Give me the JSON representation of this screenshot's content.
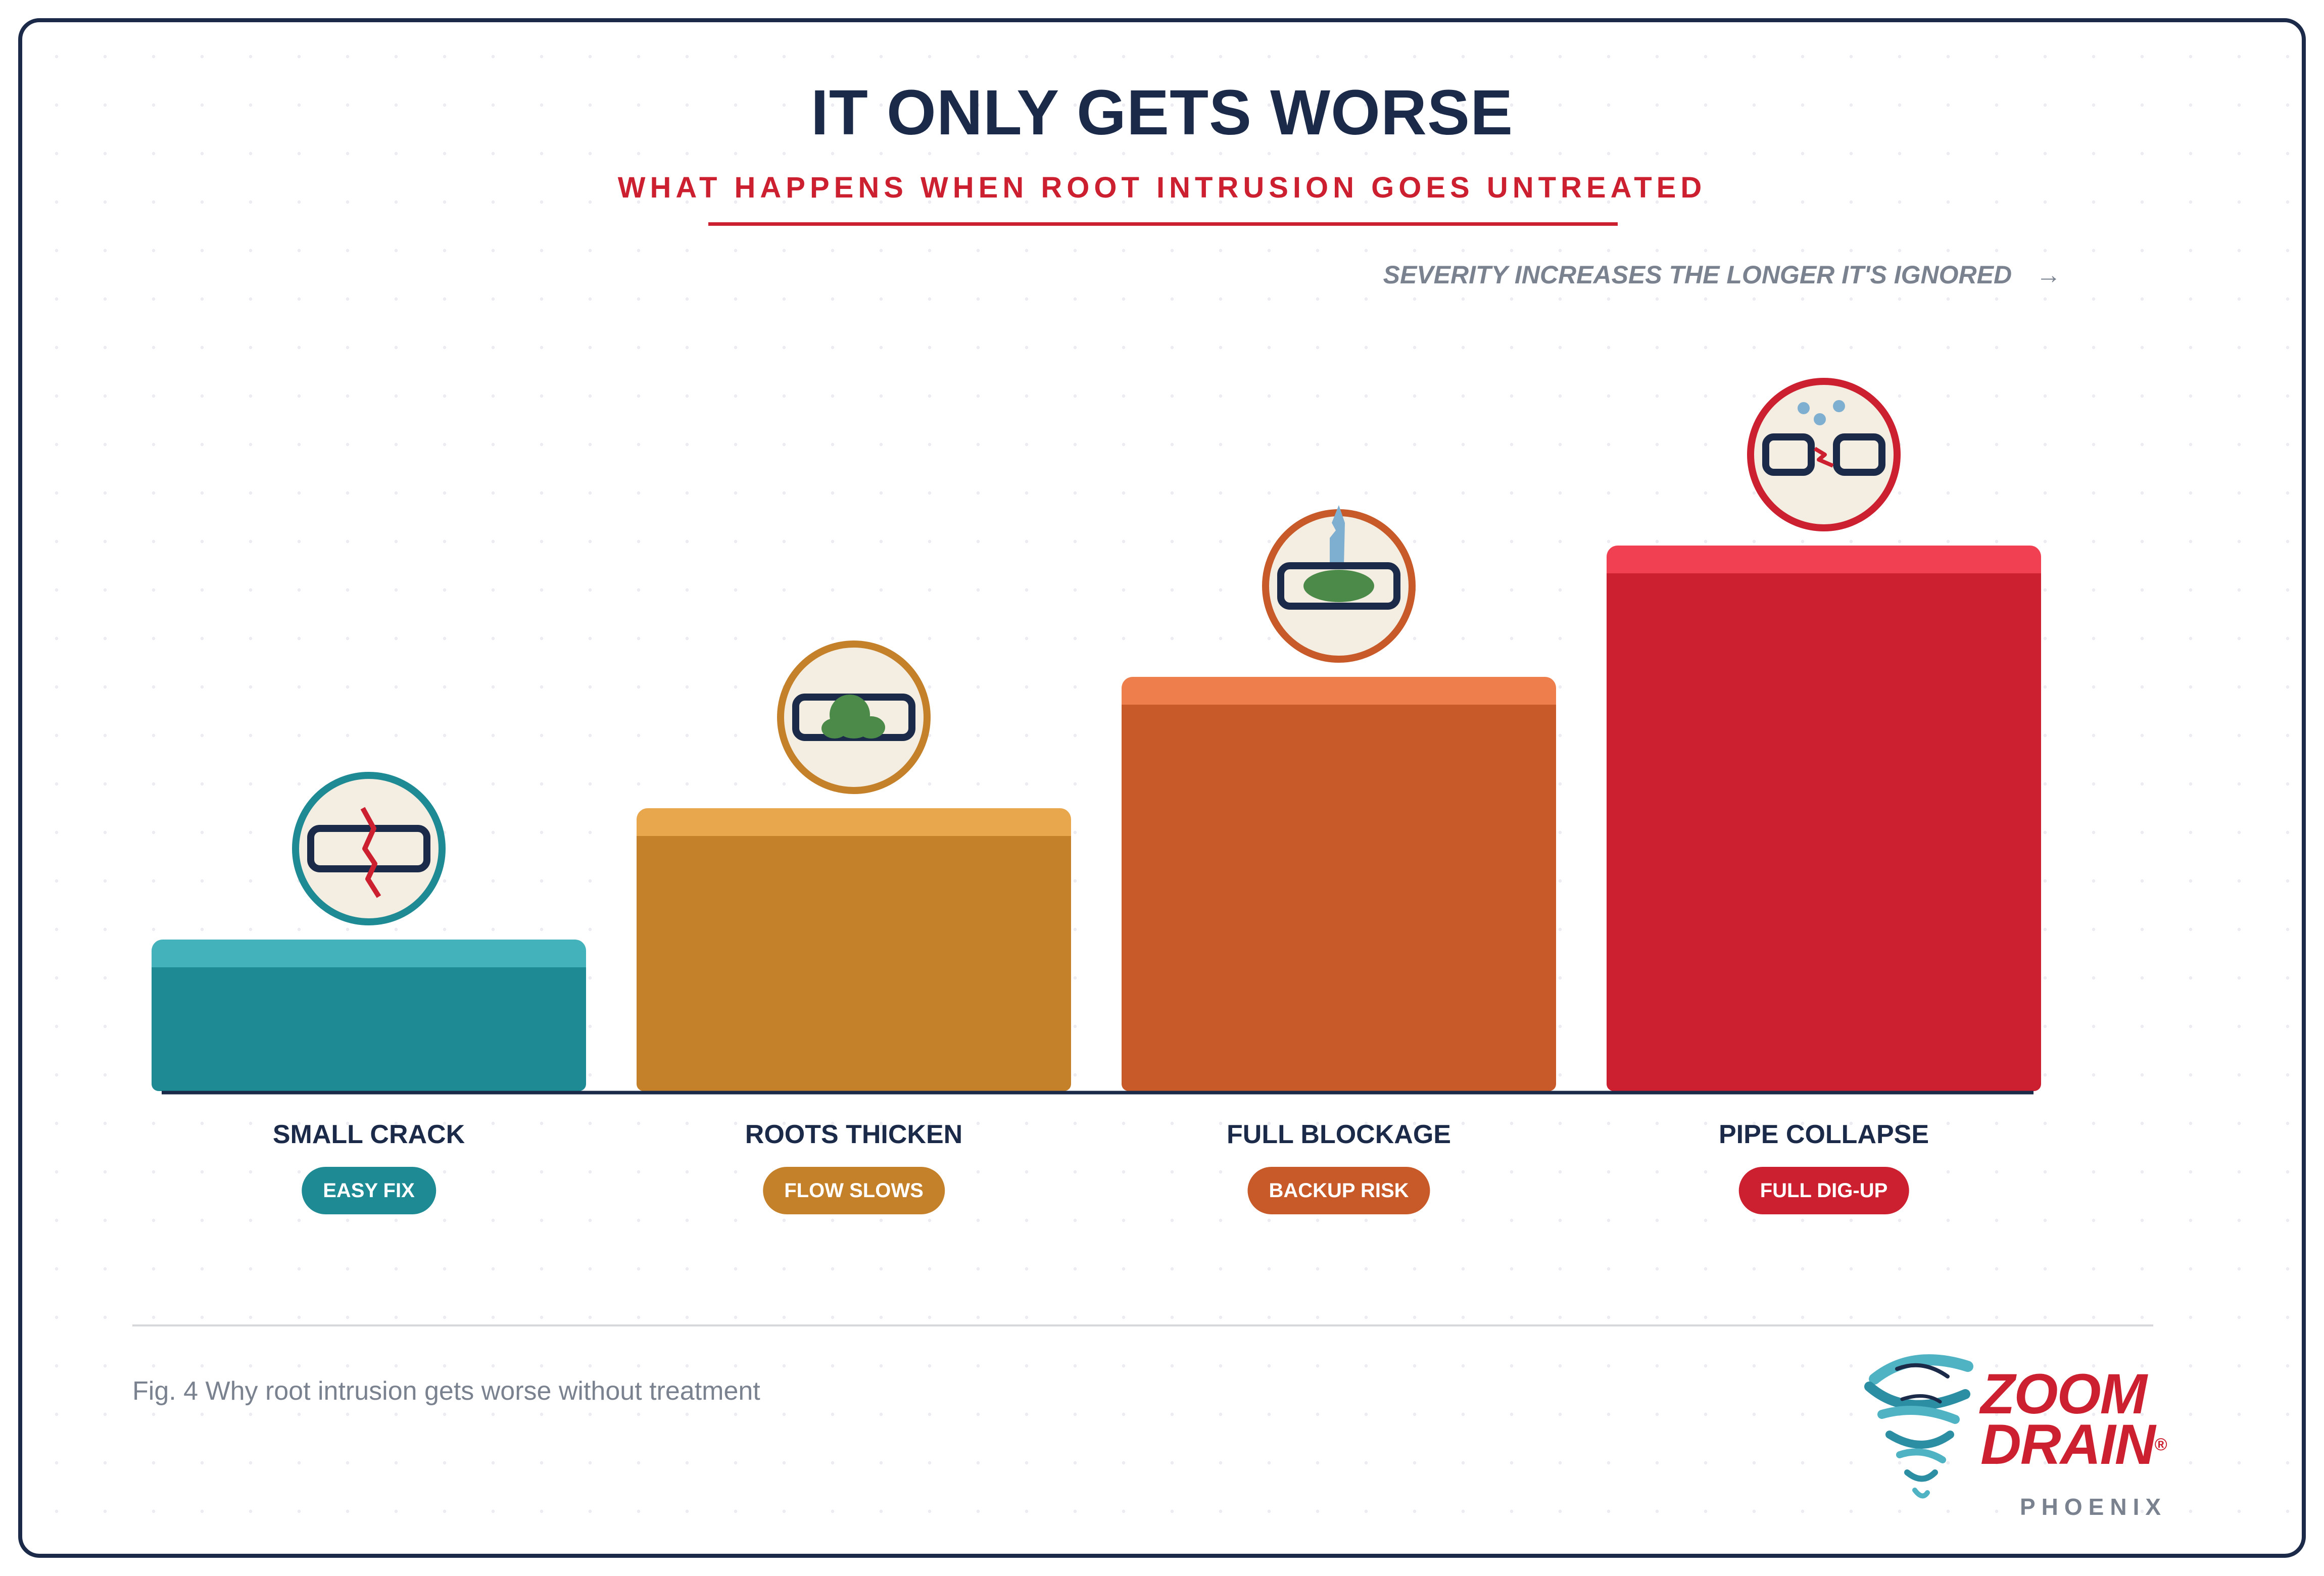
{
  "header": {
    "title": "IT ONLY GETS WORSE",
    "subtitle": "WHAT HAPPENS WHEN ROOT INTRUSION GOES UNTREATED",
    "severity_note": "SEVERITY INCREASES THE LONGER IT'S IGNORED",
    "severity_arrow": "→"
  },
  "steps": [
    {
      "label": "SMALL CRACK",
      "badge": "EASY FIX",
      "color": "#1e8a93",
      "top_color": "#44b2bb",
      "icon": "cracked-pipe-icon",
      "severity_level": 1
    },
    {
      "label": "ROOTS THICKEN",
      "badge": "FLOW SLOWS",
      "color": "#c4812a",
      "top_color": "#e8a64d",
      "icon": "pipe-with-roots-icon",
      "severity_level": 2
    },
    {
      "label": "FULL BLOCKAGE",
      "badge": "BACKUP RISK",
      "color": "#c75a28",
      "top_color": "#ee7e4c",
      "icon": "blocked-pipe-with-backup-icon",
      "severity_level": 3
    },
    {
      "label": "PIPE COLLAPSE",
      "badge": "FULL DIG-UP",
      "color": "#cc1f2f",
      "top_color": "#f04052",
      "icon": "collapsed-pipe-icon",
      "severity_level": 4
    }
  ],
  "footer": {
    "caption": "Fig. 4 Why root intrusion gets worse without treatment"
  },
  "brand": {
    "line1": "ZOOM",
    "line2": "DRAIN",
    "registered": "®",
    "city": "PHOENIX",
    "icon": "tornado-logo-icon",
    "primary_color": "#cc1f2f",
    "secondary_color": "#1b2a49"
  }
}
